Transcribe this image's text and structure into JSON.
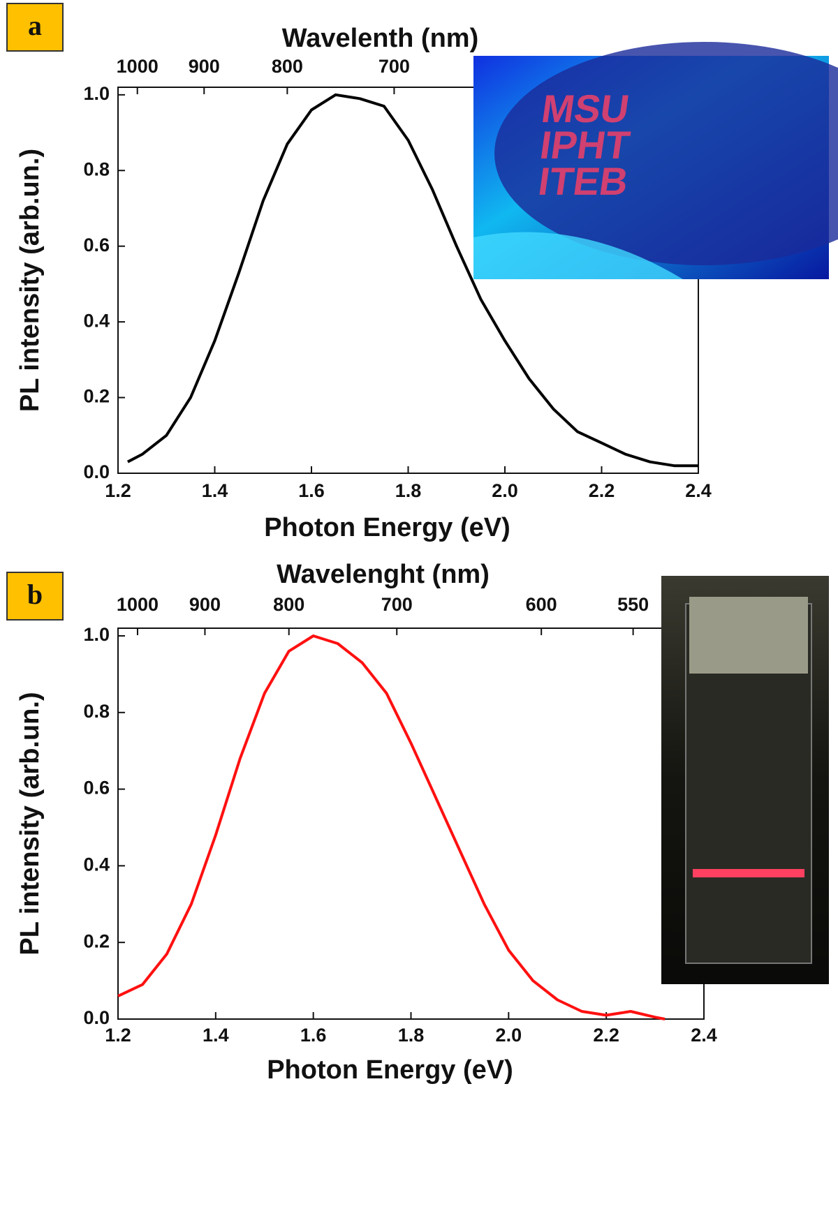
{
  "chart_data": [
    {
      "type": "line",
      "panel": "a",
      "title": "Wavelenth (nm)",
      "xlabel": "Photon Energy (eV)",
      "ylabel": "PL intensity (arb.un.)",
      "x": [
        1.22,
        1.25,
        1.3,
        1.35,
        1.4,
        1.45,
        1.5,
        1.55,
        1.6,
        1.65,
        1.7,
        1.75,
        1.8,
        1.85,
        1.9,
        1.95,
        2.0,
        2.05,
        2.1,
        2.15,
        2.2,
        2.25,
        2.3,
        2.35,
        2.4
      ],
      "series": [
        {
          "color": "#000000",
          "values": [
            0.03,
            0.05,
            0.1,
            0.2,
            0.35,
            0.53,
            0.72,
            0.87,
            0.96,
            1.0,
            0.99,
            0.97,
            0.88,
            0.75,
            0.6,
            0.46,
            0.35,
            0.25,
            0.17,
            0.11,
            0.08,
            0.05,
            0.03,
            0.02,
            0.02
          ]
        }
      ],
      "xlim": [
        1.2,
        2.4
      ],
      "ylim": [
        0,
        1.02
      ],
      "xticks": [
        1.2,
        1.4,
        1.6,
        1.8,
        {
          "value": 2,
          "label": "2.0"
        },
        2.2,
        2.4
      ],
      "yticks": [
        {
          "value": 0,
          "label": "0.0"
        },
        0.2,
        0.4,
        0.6,
        0.8,
        {
          "value": 1,
          "label": "1.0"
        }
      ],
      "x2ticks": [
        {
          "value": 1.24,
          "label": "1000"
        },
        {
          "value": 1.378,
          "label": "900"
        },
        {
          "value": 1.55,
          "label": "800"
        },
        {
          "value": 1.771,
          "label": "700"
        }
      ],
      "inset_text": [
        "MSU",
        "IPHT",
        "ITEB"
      ]
    },
    {
      "type": "line",
      "panel": "b",
      "title": "Wavelenght (nm)",
      "xlabel": "Photon Energy (eV)",
      "ylabel": "PL intensity (arb.un.)",
      "x": [
        1.2,
        1.25,
        1.3,
        1.35,
        1.4,
        1.45,
        1.5,
        1.55,
        1.6,
        1.65,
        1.7,
        1.75,
        1.8,
        1.85,
        1.9,
        1.95,
        2.0,
        2.05,
        2.1,
        2.15,
        2.2,
        2.25,
        2.3,
        2.32
      ],
      "series": [
        {
          "color": "#ff1010",
          "values": [
            0.06,
            0.09,
            0.17,
            0.3,
            0.48,
            0.68,
            0.85,
            0.96,
            1.0,
            0.98,
            0.93,
            0.85,
            0.72,
            0.58,
            0.44,
            0.3,
            0.18,
            0.1,
            0.05,
            0.02,
            0.01,
            0.02,
            0.005,
            0
          ]
        }
      ],
      "xlim": [
        1.2,
        2.4
      ],
      "ylim": [
        0,
        1.02
      ],
      "xticks": [
        1.2,
        1.4,
        1.6,
        1.8,
        {
          "value": 2,
          "label": "2.0"
        },
        2.2,
        2.4
      ],
      "yticks": [
        {
          "value": 0,
          "label": "0.0"
        },
        0.2,
        0.4,
        0.6,
        0.8,
        {
          "value": 1,
          "label": "1.0"
        }
      ],
      "x2ticks": [
        {
          "value": 1.24,
          "label": "1000"
        },
        {
          "value": 1.378,
          "label": "900"
        },
        {
          "value": 1.55,
          "label": "800"
        },
        {
          "value": 1.771,
          "label": "700"
        },
        {
          "value": 2.067,
          "label": "600"
        },
        {
          "value": 2.255,
          "label": "550"
        }
      ]
    }
  ]
}
